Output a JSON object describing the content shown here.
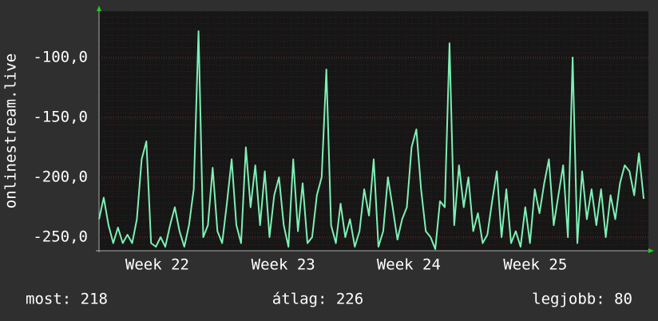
{
  "chart_data": {
    "type": "line",
    "y_label": "onlinestream.live",
    "color": "#7df0b4",
    "values": [
      -235,
      -217,
      -240,
      -255,
      -242,
      -255,
      -248,
      -255,
      -235,
      -185,
      -170,
      -255,
      -258,
      -250,
      -258,
      -240,
      -225,
      -245,
      -258,
      -240,
      -210,
      -78,
      -250,
      -240,
      -192,
      -245,
      -255,
      -222,
      -185,
      -240,
      -255,
      -175,
      -225,
      -190,
      -240,
      -195,
      -250,
      -215,
      -200,
      -240,
      -258,
      -185,
      -245,
      -205,
      -255,
      -250,
      -215,
      -200,
      -110,
      -240,
      -255,
      -222,
      -250,
      -235,
      -258,
      -245,
      -210,
      -232,
      -185,
      -258,
      -245,
      -200,
      -225,
      -252,
      -235,
      -225,
      -175,
      -160,
      -210,
      -245,
      -250,
      -260,
      -220,
      -225,
      -88,
      -240,
      -190,
      -225,
      -200,
      -245,
      -230,
      -255,
      -248,
      -220,
      -195,
      -250,
      -210,
      -255,
      -245,
      -258,
      -225,
      -255,
      -210,
      -230,
      -205,
      -185,
      -240,
      -215,
      -190,
      -250,
      -100,
      -255,
      -195,
      -235,
      -210,
      -240,
      -210,
      -250,
      -215,
      -235,
      -205,
      -190,
      -195,
      -215,
      -180,
      -218
    ],
    "xlim": [
      0,
      116
    ],
    "xticks": [
      {
        "value": 12.3,
        "label": "Week 22"
      },
      {
        "value": 38.9,
        "label": "Week 23"
      },
      {
        "value": 65.4,
        "label": "Week 24"
      },
      {
        "value": 92.1,
        "label": "Week 25"
      }
    ],
    "ylim": [
      -261.3,
      -61.3
    ],
    "yticks": [
      {
        "value": -100,
        "label": "-100,0"
      },
      {
        "value": -150,
        "label": "-150,0"
      },
      {
        "value": -200,
        "label": "-200,0"
      },
      {
        "value": -250,
        "label": "-250,0"
      }
    ],
    "grid": true,
    "summary": [
      "most: 218",
      "átlag: 226",
      "legjobb: 80"
    ]
  }
}
